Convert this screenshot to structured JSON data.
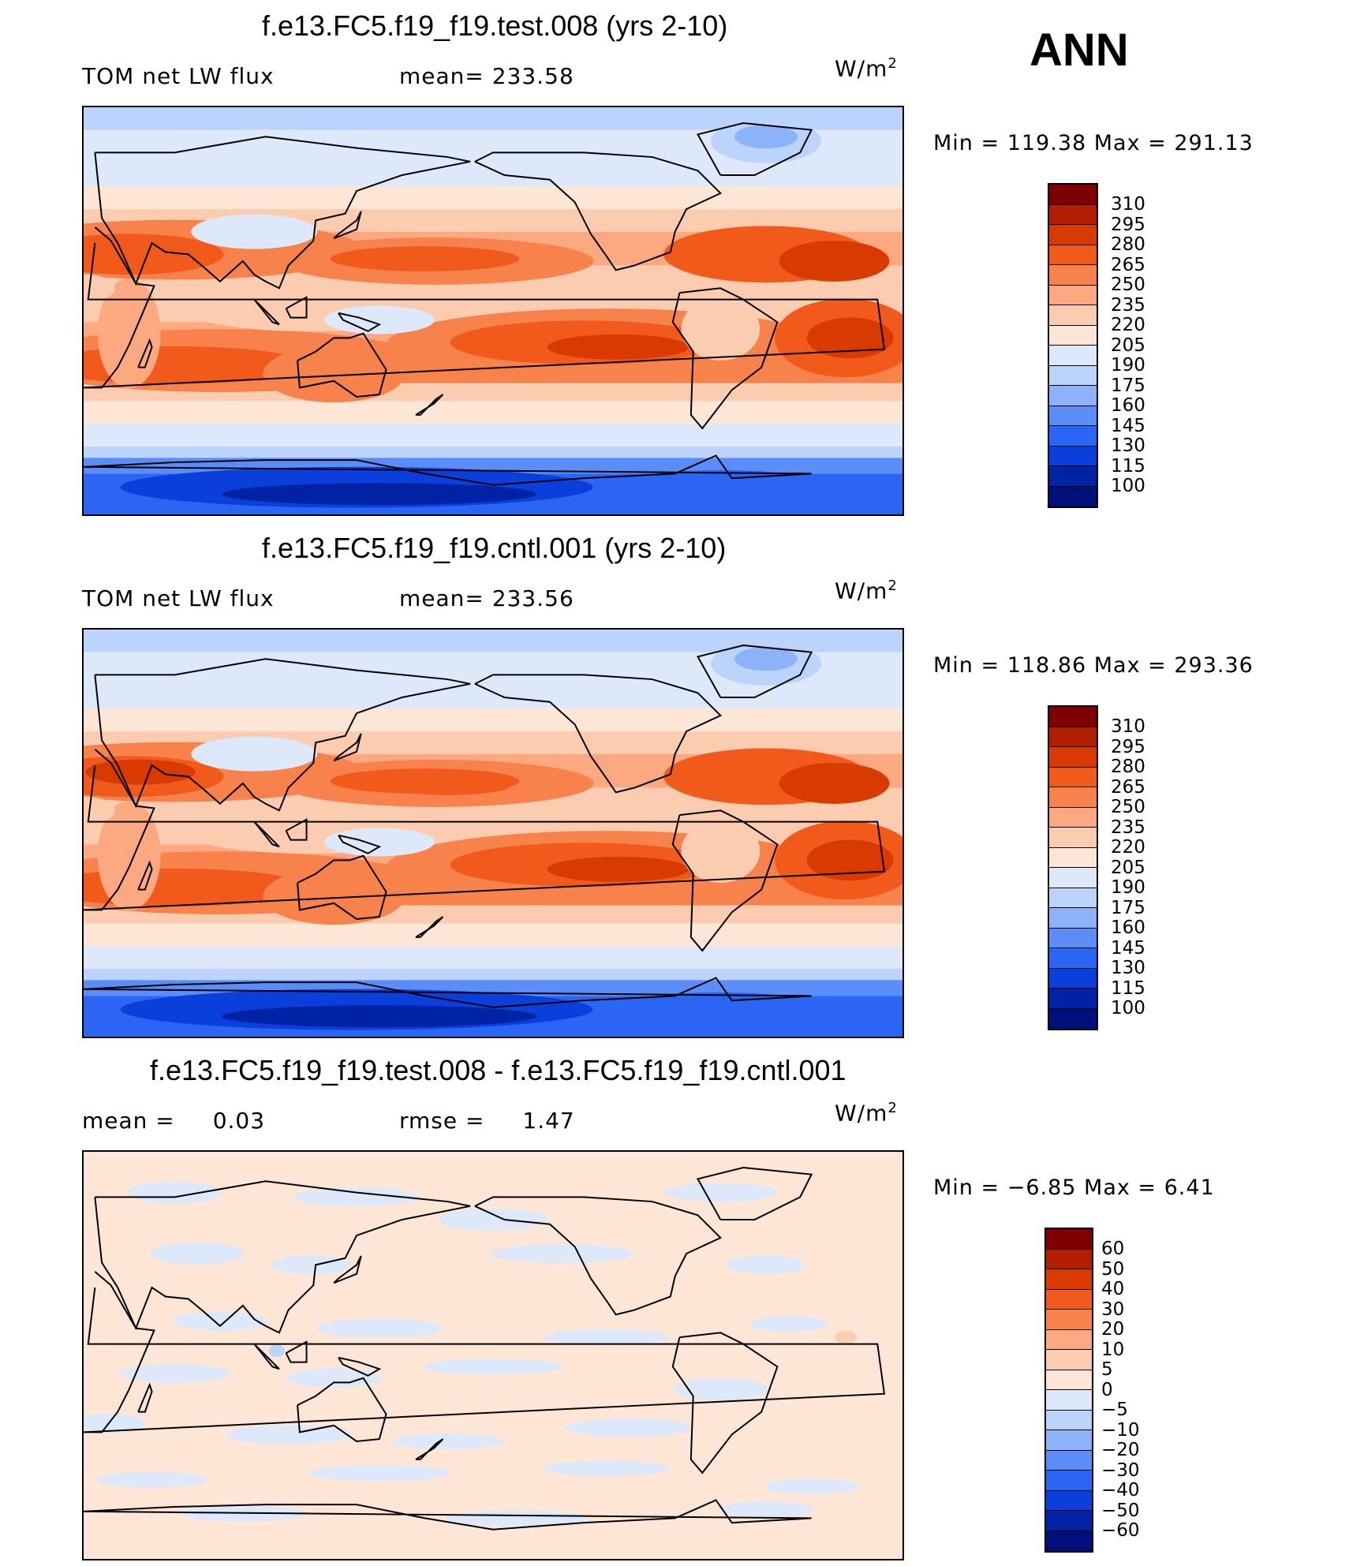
{
  "season": "ANN",
  "units_label": "W/m",
  "units_sup": "2",
  "panels": [
    {
      "title": "f.e13.FC5.f19_f19.test.008 (yrs 2-10)",
      "left_text": "TOM net LW flux",
      "stat_text": "mean=",
      "stat_value": "233.58",
      "minmax_label": "Min  =  119.38  Max  =  291.13",
      "colorbar_levels": [
        "310",
        "295",
        "280",
        "265",
        "250",
        "235",
        "220",
        "205",
        "190",
        "175",
        "160",
        "145",
        "130",
        "115",
        "100"
      ]
    },
    {
      "title": "f.e13.FC5.f19_f19.cntl.001 (yrs 2-10)",
      "left_text": "TOM net LW flux",
      "stat_text": "mean=",
      "stat_value": "233.56",
      "minmax_label": "Min  =  118.86  Max  =  293.36",
      "colorbar_levels": [
        "310",
        "295",
        "280",
        "265",
        "250",
        "235",
        "220",
        "205",
        "190",
        "175",
        "160",
        "145",
        "130",
        "115",
        "100"
      ]
    },
    {
      "title": "f.e13.FC5.f19_f19.test.008 - f.e13.FC5.f19_f19.cntl.001",
      "left_text": "mean  =",
      "left_value": "0.03",
      "stat_text": "rmse  =",
      "stat_value": "1.47",
      "minmax_label": "Min  =    −6.85  Max  =      6.41",
      "colorbar_levels": [
        "60",
        "50",
        "40",
        "30",
        "20",
        "10",
        "5",
        "0",
        "−5",
        "−10",
        "−20",
        "−30",
        "−40",
        "−50",
        "−60"
      ]
    }
  ],
  "colors": {
    "abs_scale": [
      "#7f0000",
      "#b11f00",
      "#d83a00",
      "#f15a1a",
      "#f7824c",
      "#fca880",
      "#fcccb0",
      "#fde6d6",
      "#dde9fa",
      "#bcd3fb",
      "#8cb2fa",
      "#5b8df8",
      "#2a65f3",
      "#0a3fdc",
      "#0023a6",
      "#00107a"
    ],
    "diff_scale": [
      "#7f0000",
      "#b11f00",
      "#d83a00",
      "#f15a1a",
      "#f7824c",
      "#fca880",
      "#fcccb0",
      "#fde6d6",
      "#dde9fa",
      "#bcd3fb",
      "#8cb2fa",
      "#5b8df8",
      "#2a65f3",
      "#0a3fdc",
      "#0023a6",
      "#00107a"
    ],
    "coast": "#000000"
  },
  "chart_data": [
    {
      "type": "heatmap",
      "title": "f.e13.FC5.f19_f19.test.008 (yrs 2-10)",
      "variable": "TOM net LW flux",
      "units": "W/m2",
      "mean": 233.58,
      "min": 119.38,
      "max": 291.13,
      "contour_levels": [
        100,
        115,
        130,
        145,
        160,
        175,
        190,
        205,
        220,
        235,
        250,
        265,
        280,
        295,
        310
      ],
      "projection": "cylindrical equidistant, centered on dateline"
    },
    {
      "type": "heatmap",
      "title": "f.e13.FC5.f19_f19.cntl.001 (yrs 2-10)",
      "variable": "TOM net LW flux",
      "units": "W/m2",
      "mean": 233.56,
      "min": 118.86,
      "max": 293.36,
      "contour_levels": [
        100,
        115,
        130,
        145,
        160,
        175,
        190,
        205,
        220,
        235,
        250,
        265,
        280,
        295,
        310
      ],
      "projection": "cylindrical equidistant, centered on dateline"
    },
    {
      "type": "heatmap",
      "title": "f.e13.FC5.f19_f19.test.008 - f.e13.FC5.f19_f19.cntl.001",
      "units": "W/m2",
      "mean": 0.03,
      "rmse": 1.47,
      "min": -6.85,
      "max": 6.41,
      "contour_levels": [
        -60,
        -50,
        -40,
        -30,
        -20,
        -10,
        -5,
        0,
        5,
        10,
        20,
        30,
        40,
        50,
        60
      ],
      "projection": "cylindrical equidistant, centered on dateline"
    }
  ]
}
